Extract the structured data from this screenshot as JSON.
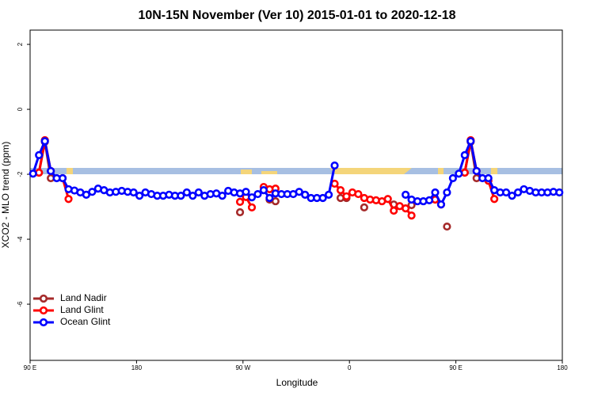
{
  "chart_data": {
    "type": "line",
    "title": "10N-15N November (Ver 10)   2015-01-01 to 2020-12-18",
    "x_label": "Longitude",
    "y_label": "XCO2 - MLO trend (ppm)",
    "xlim": [
      90,
      540
    ],
    "ylim": [
      -7.73,
      2.44
    ],
    "xticks": [
      {
        "value": 90,
        "label": "90 E"
      },
      {
        "value": 180,
        "label": "180"
      },
      {
        "value": 270,
        "label": "90 W"
      },
      {
        "value": 360,
        "label": "0"
      },
      {
        "value": 450,
        "label": "90 E"
      },
      {
        "value": 540,
        "label": "180"
      }
    ],
    "yticks": [
      -6,
      -4,
      -2,
      0,
      2
    ],
    "legend": "bottomleft",
    "x": [
      92.5,
      97.5,
      102.5,
      107.5,
      112.5,
      117.5,
      122.5,
      127.5,
      132.5,
      137.5,
      142.5,
      147.5,
      152.5,
      157.5,
      162.5,
      167.5,
      172.5,
      177.5,
      182.5,
      187.5,
      192.5,
      197.5,
      202.5,
      207.5,
      212.5,
      217.5,
      222.5,
      227.5,
      232.5,
      237.5,
      242.5,
      247.5,
      252.5,
      257.5,
      262.5,
      267.5,
      272.5,
      277.5,
      282.5,
      287.5,
      292.5,
      297.5,
      302.5,
      307.5,
      312.5,
      317.5,
      322.5,
      327.5,
      332.5,
      337.5,
      342.5,
      347.5,
      352.5,
      357.5,
      362.5,
      367.5,
      372.5,
      377.5,
      382.5,
      387.5,
      392.5,
      397.5,
      402.5,
      407.5,
      412.5,
      417.5,
      422.5,
      427.5,
      432.5,
      437.5,
      442.5,
      447.5,
      452.5,
      457.5,
      462.5,
      467.5,
      472.5,
      477.5,
      482.5,
      487.5,
      492.5,
      497.5,
      502.5,
      507.5,
      512.5,
      517.5,
      522.5,
      527.5,
      532.5,
      537.5
    ],
    "series": [
      {
        "name": "Land Nadir",
        "color": "#a52a2a",
        "values": [
          null,
          -1.95,
          -1.0,
          -2.12,
          null,
          null,
          null,
          null,
          null,
          null,
          null,
          null,
          null,
          null,
          null,
          null,
          null,
          null,
          null,
          null,
          null,
          null,
          null,
          null,
          null,
          null,
          null,
          null,
          null,
          null,
          null,
          null,
          null,
          null,
          null,
          -3.17,
          null,
          null,
          null,
          null,
          -2.78,
          -2.83,
          null,
          null,
          null,
          null,
          null,
          null,
          null,
          null,
          null,
          null,
          -2.73,
          -2.73,
          null,
          null,
          -3.02,
          null,
          null,
          null,
          null,
          -2.93,
          null,
          null,
          -2.95,
          null,
          null,
          null,
          -2.78,
          null,
          -3.61,
          null,
          null,
          -1.95,
          -1.0,
          -2.12,
          null,
          null,
          null,
          null,
          null,
          null,
          null,
          null,
          null,
          null,
          null,
          null,
          null,
          null
        ]
      },
      {
        "name": "Land Glint",
        "color": "#ff0000",
        "values": [
          null,
          -1.95,
          -0.95,
          -1.9,
          null,
          -2.12,
          -2.76,
          null,
          null,
          null,
          null,
          null,
          null,
          null,
          null,
          null,
          null,
          null,
          null,
          null,
          null,
          null,
          null,
          null,
          null,
          null,
          null,
          null,
          null,
          null,
          null,
          null,
          null,
          null,
          null,
          -2.85,
          -2.7,
          -3.02,
          null,
          -2.39,
          -2.46,
          -2.44,
          null,
          null,
          null,
          null,
          null,
          null,
          null,
          null,
          null,
          -2.29,
          -2.49,
          -2.68,
          -2.56,
          -2.61,
          -2.73,
          -2.78,
          -2.8,
          -2.83,
          -2.76,
          -3.12,
          -2.98,
          -3.05,
          -3.27,
          null,
          null,
          null,
          -2.78,
          -2.93,
          null,
          null,
          null,
          -1.95,
          -0.95,
          -1.9,
          null,
          -2.2,
          -2.76,
          null,
          null,
          null,
          null,
          null,
          null,
          null,
          null,
          null,
          null,
          null
        ]
      },
      {
        "name": "Ocean Glint",
        "color": "#0000ff",
        "values": [
          -1.98,
          -1.41,
          -0.98,
          -1.9,
          -2.12,
          -2.12,
          -2.46,
          -2.5,
          -2.56,
          -2.63,
          -2.54,
          -2.44,
          -2.49,
          -2.56,
          -2.54,
          -2.51,
          -2.54,
          -2.56,
          -2.66,
          -2.56,
          -2.61,
          -2.66,
          -2.66,
          -2.63,
          -2.66,
          -2.66,
          -2.56,
          -2.66,
          -2.56,
          -2.66,
          -2.61,
          -2.59,
          -2.66,
          -2.51,
          -2.56,
          -2.59,
          -2.54,
          -2.71,
          -2.61,
          -2.49,
          -2.73,
          -2.59,
          -2.61,
          -2.61,
          -2.61,
          -2.54,
          -2.63,
          -2.73,
          -2.73,
          -2.73,
          -2.63,
          -1.73,
          null,
          null,
          null,
          null,
          null,
          null,
          null,
          null,
          null,
          null,
          null,
          -2.63,
          -2.78,
          -2.83,
          -2.83,
          -2.8,
          -2.56,
          -2.93,
          -2.56,
          -2.12,
          -1.98,
          -1.41,
          -0.98,
          -1.9,
          -2.12,
          -2.12,
          -2.49,
          -2.56,
          -2.56,
          -2.66,
          -2.56,
          -2.46,
          -2.51,
          -2.56,
          -2.56,
          -2.56,
          -2.54,
          -2.56
        ]
      }
    ]
  }
}
